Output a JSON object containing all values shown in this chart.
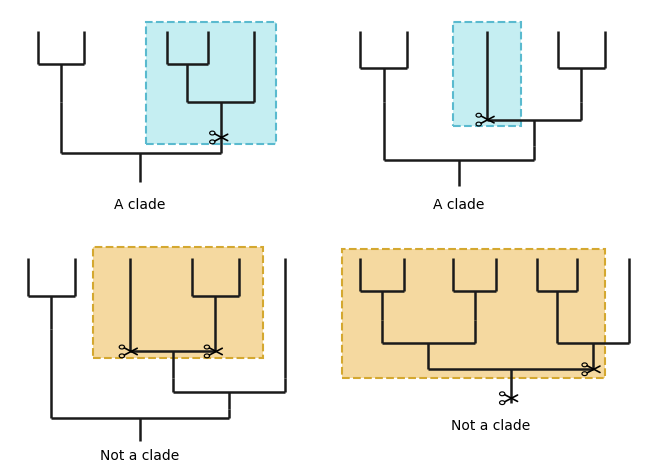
{
  "fig_width": 6.58,
  "fig_height": 4.64,
  "bg_color": "#ffffff",
  "tree_color": "#1a1a1a",
  "tree_lw": 1.8,
  "blue_fill": "#c5eef2",
  "blue_edge": "#5abacf",
  "orange_fill": "#f5d9a0",
  "orange_edge": "#d4a830",
  "label_fontsize": 10,
  "panel_labels": [
    "A clade",
    "A clade",
    "Not a clade",
    "Not a clade"
  ]
}
